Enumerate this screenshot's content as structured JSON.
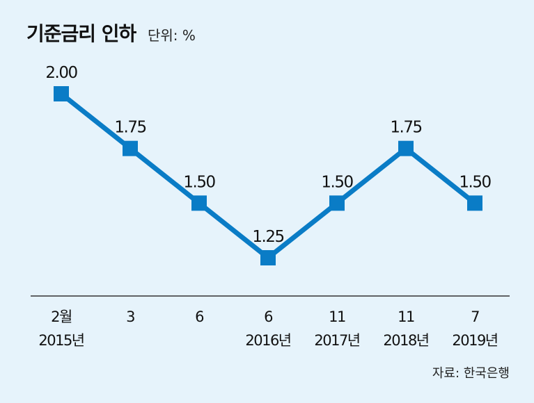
{
  "chart_data": {
    "type": "line",
    "title": "기준금리 인하",
    "unit": "단위: %",
    "source": "자료: 한국은행",
    "categories": [
      [
        "2월",
        "2015년"
      ],
      [
        "3",
        ""
      ],
      [
        "6",
        ""
      ],
      [
        "6",
        "2016년"
      ],
      [
        "11",
        "2017년"
      ],
      [
        "11",
        "2018년"
      ],
      [
        "7",
        "2019년"
      ]
    ],
    "values": [
      2.0,
      1.75,
      1.5,
      1.25,
      1.5,
      1.75,
      1.5
    ],
    "value_labels": [
      "2.00",
      "1.75",
      "1.50",
      "1.25",
      "1.50",
      "1.75",
      "1.50"
    ],
    "ylim": [
      0.9,
      2.0
    ],
    "grid": false,
    "line_color": "#0a7cc6"
  }
}
